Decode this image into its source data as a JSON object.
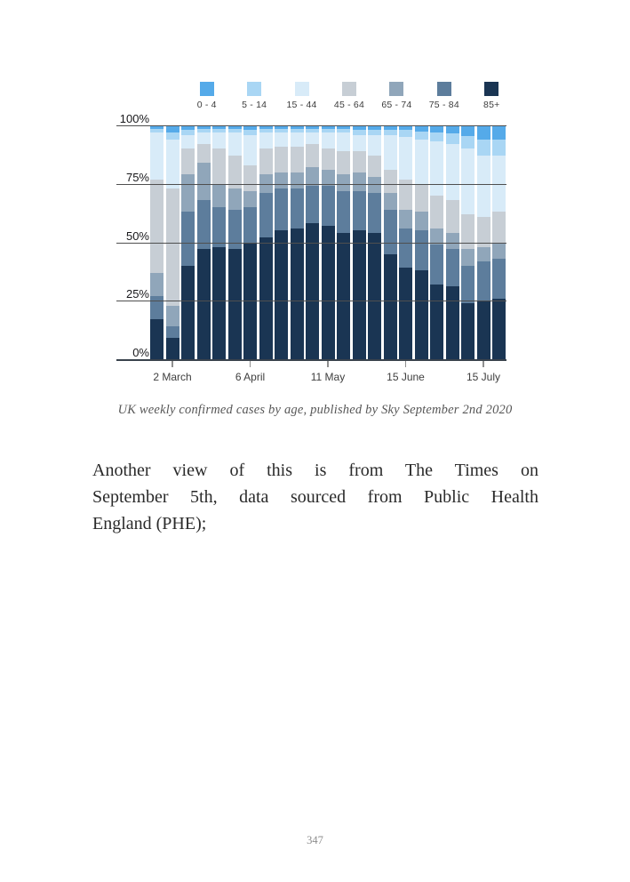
{
  "page": {
    "number": "347"
  },
  "figure": {
    "caption": "UK weekly confirmed cases by age, published by Sky September 2nd 2020"
  },
  "paragraph": {
    "lines": [
      "Another view of this is from The Times on",
      "September 5th, data sourced from Public Health",
      "England (PHE);"
    ]
  },
  "chart_data": {
    "type": "bar",
    "variant": "stacked-100-percent",
    "title": "",
    "xlabel": "",
    "ylabel": "",
    "ylim": [
      0,
      100
    ],
    "grid": true,
    "legend_position": "top",
    "y_ticks": [
      "100%",
      "75%",
      "50%",
      "25%",
      "0%"
    ],
    "x_ticks": [
      {
        "label": "2 March",
        "week": 1
      },
      {
        "label": "6 April",
        "week": 6
      },
      {
        "label": "11 May",
        "week": 11
      },
      {
        "label": "15 June",
        "week": 16
      },
      {
        "label": "15 July",
        "week": 21
      }
    ],
    "n_weeks": 23,
    "unit": "%",
    "series": [
      {
        "name": "0 - 4",
        "color": "#55aae9",
        "values": [
          1.5,
          3,
          2,
          1.5,
          1.5,
          1.5,
          2,
          1.5,
          1.5,
          1.5,
          1.5,
          1.5,
          1.5,
          2,
          2,
          2,
          2,
          2.5,
          3,
          3.5,
          4.5,
          6,
          6
        ]
      },
      {
        "name": "5 - 14",
        "color": "#a9d6f4",
        "values": [
          1.5,
          3,
          2,
          1.5,
          1.5,
          1.5,
          2,
          1.5,
          1.5,
          1.5,
          1.5,
          1.5,
          1.5,
          2,
          2,
          2,
          3,
          3.5,
          4,
          4.5,
          5.5,
          7,
          7
        ]
      },
      {
        "name": "15 - 44",
        "color": "#d8ebf8",
        "values": [
          20,
          21,
          6,
          5,
          7,
          10,
          13,
          7,
          6,
          6,
          5,
          7,
          8,
          7,
          9,
          15,
          18,
          19,
          23,
          24,
          28,
          26,
          24
        ]
      },
      {
        "name": "45 - 64",
        "color": "#c7ced5",
        "values": [
          40,
          50,
          11,
          8,
          15,
          14,
          11,
          11,
          11,
          11,
          10,
          9,
          10,
          9,
          9,
          10,
          13,
          12,
          14,
          14,
          15,
          13,
          13
        ]
      },
      {
        "name": "65 - 74",
        "color": "#90a6ba",
        "values": [
          10,
          9,
          16,
          16,
          10,
          9,
          7,
          8,
          7,
          7,
          8,
          7,
          7,
          8,
          7,
          7,
          8,
          8,
          7,
          7,
          7,
          6,
          7
        ]
      },
      {
        "name": "75 - 84",
        "color": "#5d7d9c",
        "values": [
          10,
          5,
          23,
          21,
          17,
          17,
          15,
          19,
          18,
          17,
          16,
          17,
          18,
          17,
          17,
          19,
          17,
          17,
          17,
          16,
          16,
          17,
          17
        ]
      },
      {
        "name": "85+",
        "color": "#1a3553",
        "values": [
          17,
          9,
          40,
          47,
          48,
          47,
          50,
          52,
          55,
          56,
          58,
          57,
          54,
          55,
          54,
          45,
          39,
          38,
          32,
          31,
          24,
          25,
          26
        ]
      }
    ]
  }
}
